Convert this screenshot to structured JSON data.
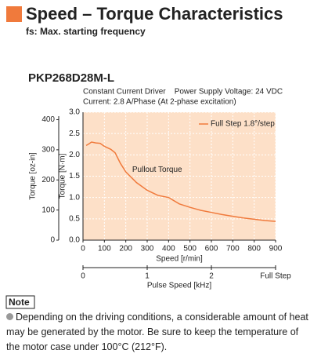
{
  "header": {
    "title": "Speed – Torque Characteristics",
    "subtitle": "fs: Max. starting frequency"
  },
  "model": "PKP268D28M-L",
  "conditions": [
    "Constant Current Driver    Power Supply Voltage: 24 VDC",
    "Current: 2.8 A/Phase (At 2-phase excitation)"
  ],
  "chart_data": {
    "type": "line",
    "x": [
      15,
      25,
      40,
      60,
      80,
      100,
      130,
      150,
      175,
      200,
      250,
      300,
      350,
      400,
      450,
      500,
      550,
      600,
      650,
      700,
      750,
      800,
      850,
      900
    ],
    "series": [
      {
        "name": "Full Step 1.8°/step",
        "color": "#f07a3c",
        "values": [
          2.22,
          2.25,
          2.3,
          2.28,
          2.27,
          2.2,
          2.13,
          2.05,
          1.8,
          1.6,
          1.35,
          1.17,
          1.05,
          1.0,
          0.85,
          0.77,
          0.7,
          0.65,
          0.6,
          0.56,
          0.52,
          0.49,
          0.46,
          0.44
        ]
      }
    ],
    "xlim": [
      0,
      900
    ],
    "xticks": [
      0,
      100,
      200,
      300,
      400,
      500,
      600,
      700,
      800,
      900
    ],
    "xlabel": "Speed [r/min]",
    "ylim": [
      0,
      3
    ],
    "yticks": [
      {
        "value": 0,
        "label": "0.0"
      },
      {
        "value": 0.5,
        "label": "0.5"
      },
      {
        "value": 1,
        "label": "1.0"
      },
      {
        "value": 1.5,
        "label": "1.5"
      },
      {
        "value": 2,
        "label": "2.0"
      },
      {
        "value": 2.5,
        "label": "2.5"
      },
      {
        "value": 3,
        "label": "3.0"
      }
    ],
    "ylabel": "Torque [N·m]",
    "y2lim": [
      0,
      424.8
    ],
    "y2ticks": [
      0,
      100,
      200,
      300,
      400
    ],
    "y2label": "Torque [oz-in]",
    "x2lim": [
      0,
      3
    ],
    "x2ticks": [
      0,
      1,
      2
    ],
    "x2label": "Pulse Speed [kHz]",
    "x2_end_label": "Full Step",
    "annotation": "Pullout Torque",
    "grid": true,
    "legend": "upper right",
    "background": "#fde0c8"
  },
  "note": {
    "label": "Note",
    "text": "Depending on the driving conditions, a considerable amount of heat may be generated by the motor. Be sure to keep the temperature of the motor case under 100°C (212°F)."
  }
}
